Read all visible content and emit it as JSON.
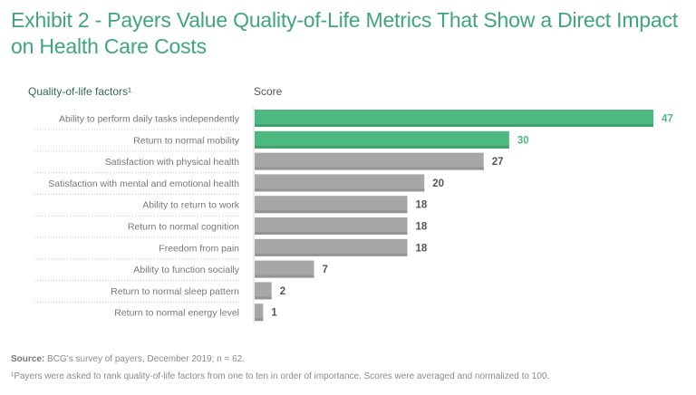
{
  "title": "Exhibit 2 - Payers Value Quality-of-Life Metrics That Show a Direct Impact on Health Care Costs",
  "headers": {
    "left": "Quality-of-life factors¹",
    "right": "Score"
  },
  "footer": {
    "source_label": "Source:",
    "source_text": " BCG’s survey of payers, December 2019; n = 62.",
    "note": "¹Payers were asked to rank quality-of-life factors from one to ten in order of importance. Scores were averaged and normalized to 100."
  },
  "colors": {
    "highlight": "#4db87f",
    "highlight_shadow": "#3fa06d",
    "default": "#a8a7a7",
    "default_shadow": "#959494",
    "highlight_label": "#4db87f",
    "default_label": "#555555",
    "category_text": "#777777"
  },
  "chart_data": {
    "type": "bar",
    "orientation": "horizontal",
    "title": "Exhibit 2 - Payers Value Quality-of-Life Metrics That Show a Direct Impact on Health Care Costs",
    "xlabel": "Score",
    "ylabel": "Quality-of-life factors¹",
    "xlim": [
      0,
      47
    ],
    "grid": false,
    "categories": [
      "Ability to perform daily tasks independently",
      "Return to normal mobility",
      "Satisfaction with physical health",
      "Satisfaction with mental and emotional health",
      "Ability to return to work",
      "Return to normal cognition",
      "Freedom from pain",
      "Ability to function socially",
      "Return to normal sleep pattern",
      "Return to normal energy level"
    ],
    "values": [
      47,
      30,
      27,
      20,
      18,
      18,
      18,
      7,
      2,
      1
    ],
    "highlighted": [
      true,
      true,
      false,
      false,
      false,
      false,
      false,
      false,
      false,
      false
    ]
  }
}
